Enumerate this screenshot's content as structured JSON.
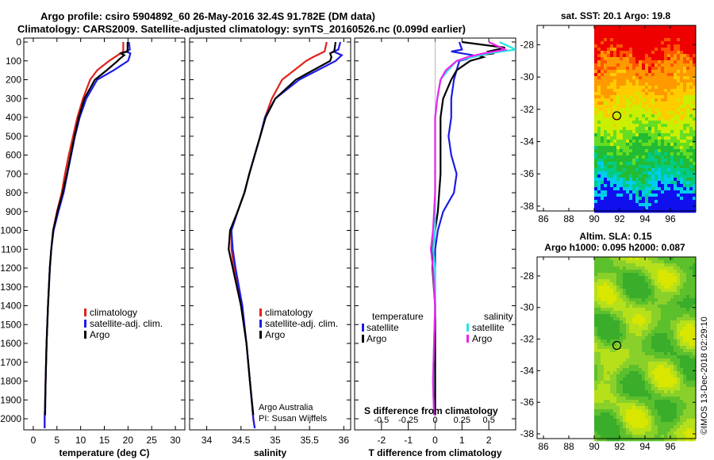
{
  "header": {
    "line1": "Argo profile: csiro 5904892_60 26-May-2016 32.4S 91.782E (DM data)",
    "line2": "Climatology: CARS2009. Satellite-adjusted climatology: synTS_20160526.nc (0.099d earlier)"
  },
  "colors": {
    "climatology": "#e0201e",
    "satellite": "#1c1ce6",
    "argo": "#000000",
    "satellite_s": "#22e5e5",
    "argo_s": "#ee22ee"
  },
  "chart_data": [
    {
      "type": "line",
      "name": "temperature-profile",
      "xlabel": "temperature (deg C)",
      "xlim": [
        -2,
        32
      ],
      "xticks": [
        "0",
        "5",
        "10",
        "15",
        "20",
        "25",
        "30"
      ],
      "ylim": [
        2080,
        0
      ],
      "yticks": [
        "0",
        "100",
        "200",
        "300",
        "400",
        "500",
        "600",
        "700",
        "800",
        "900",
        "1000",
        "1100",
        "1200",
        "1300",
        "1400",
        "1500",
        "1600",
        "1700",
        "1800",
        "1900",
        "2000"
      ],
      "legend": [
        "climatology",
        "satellite-adj. clim.",
        "Argo"
      ],
      "series": [
        {
          "name": "climatology",
          "pressure": [
            0,
            50,
            100,
            150,
            200,
            300,
            400,
            500,
            600,
            700,
            800,
            900,
            1000,
            1100,
            1200,
            1400,
            1600,
            1800,
            2000,
            2050
          ],
          "values": [
            19.0,
            19.0,
            16.0,
            13.5,
            12.0,
            10.5,
            9.3,
            8.4,
            7.5,
            6.7,
            6.0,
            5.0,
            4.2,
            3.8,
            3.5,
            3.1,
            2.8,
            2.6,
            2.4,
            2.4
          ]
        },
        {
          "name": "satellite-adj. clim.",
          "pressure": [
            0,
            40,
            50,
            60,
            80,
            100,
            150,
            200,
            300,
            400,
            500,
            600,
            700,
            800,
            900,
            1000,
            1100,
            1200,
            1400,
            1600,
            1800,
            2000,
            2050
          ],
          "values": [
            20.2,
            20.4,
            19.6,
            20.5,
            20.3,
            20.0,
            17.0,
            13.5,
            11.2,
            9.8,
            8.8,
            8.0,
            7.2,
            6.4,
            5.3,
            4.3,
            3.8,
            3.5,
            3.1,
            2.8,
            2.6,
            2.4,
            2.4
          ]
        },
        {
          "name": "Argo",
          "pressure": [
            0,
            50,
            60,
            70,
            90,
            100,
            150,
            200,
            300,
            400,
            500,
            600,
            700,
            800,
            900,
            1000,
            1100,
            1200,
            1400,
            1600,
            1800,
            1980
          ],
          "values": [
            19.9,
            19.9,
            18.5,
            19.2,
            18.2,
            17.8,
            15.5,
            13.0,
            10.8,
            9.6,
            8.7,
            7.9,
            7.1,
            6.2,
            5.1,
            4.2,
            3.8,
            3.5,
            3.1,
            2.8,
            2.6,
            2.5
          ]
        }
      ]
    },
    {
      "type": "line",
      "name": "salinity-profile",
      "xlabel": "salinity",
      "xlim": [
        33.75,
        36.1
      ],
      "xticks": [
        "34",
        "34.5",
        "35",
        "35.5",
        "36"
      ],
      "ylim": [
        2080,
        0
      ],
      "legend": [
        "climatology",
        "satellite-adj. clim.",
        "Argo"
      ],
      "annotations": [
        "Argo Australia",
        "PI: Susan Wijffels"
      ],
      "series": [
        {
          "name": "climatology",
          "pressure": [
            0,
            50,
            80,
            100,
            200,
            300,
            400,
            500,
            600,
            700,
            800,
            900,
            1000,
            1100,
            1200,
            1400,
            1600,
            1800,
            2000,
            2050
          ],
          "values": [
            35.75,
            35.72,
            35.55,
            35.45,
            35.1,
            34.95,
            34.85,
            34.78,
            34.7,
            34.62,
            34.55,
            34.45,
            34.36,
            34.36,
            34.4,
            34.5,
            34.58,
            34.63,
            34.68,
            34.7
          ]
        },
        {
          "name": "satellite-adj. clim.",
          "pressure": [
            0,
            40,
            50,
            70,
            100,
            200,
            300,
            400,
            500,
            600,
            700,
            800,
            900,
            1000,
            1100,
            1200,
            1400,
            1600,
            1800,
            2000,
            2050
          ],
          "values": [
            35.95,
            35.92,
            35.85,
            35.97,
            35.88,
            35.35,
            35.0,
            34.85,
            34.78,
            34.7,
            34.62,
            34.55,
            34.45,
            34.36,
            34.38,
            34.42,
            34.52,
            34.58,
            34.63,
            34.68,
            34.7
          ]
        },
        {
          "name": "Argo",
          "pressure": [
            0,
            50,
            60,
            80,
            100,
            200,
            300,
            400,
            500,
            600,
            700,
            800,
            900,
            1000,
            1100,
            1200,
            1400,
            1600,
            1800,
            1980
          ],
          "values": [
            35.88,
            35.86,
            35.8,
            35.82,
            35.8,
            35.3,
            35.0,
            34.86,
            34.78,
            34.7,
            34.62,
            34.55,
            34.45,
            34.34,
            34.32,
            34.38,
            34.5,
            34.58,
            34.63,
            34.68
          ]
        }
      ]
    },
    {
      "type": "line",
      "name": "difference-profile",
      "xlabel": "T difference from climatology",
      "xlabel2": "S difference from climatology",
      "xlim": [
        -3,
        3
      ],
      "xticks": [
        "-2",
        "-1",
        "0",
        "1",
        "2"
      ],
      "xticks2": [
        "-0.5",
        "-0.25",
        "0",
        "0.25",
        "0.5"
      ],
      "ylim": [
        2080,
        0
      ],
      "legend_left_title": "temperature",
      "legend_right_title": "salinity",
      "legend": [
        "satellite",
        "Argo",
        "satellite",
        "Argo"
      ],
      "series": [
        {
          "name": "T satellite",
          "pressure": [
            0,
            40,
            50,
            70,
            90,
            100,
            150,
            200,
            300,
            400,
            500,
            600,
            700,
            800,
            900,
            1000,
            1100,
            1200,
            1400,
            1600,
            1800,
            1980
          ],
          "values": [
            0.9,
            1.0,
            0.6,
            1.4,
            1.2,
            0.9,
            0.8,
            0.7,
            0.6,
            0.6,
            0.5,
            0.6,
            0.8,
            0.7,
            0.3,
            0.1,
            0.0,
            0.0,
            0.0,
            0.0,
            0.0,
            0.0
          ]
        },
        {
          "name": "T Argo",
          "pressure": [
            0,
            30,
            50,
            60,
            70,
            80,
            100,
            150,
            200,
            300,
            400,
            500,
            600,
            700,
            800,
            900,
            1000,
            1100,
            1200,
            1400,
            1600,
            1800,
            1980
          ],
          "values": [
            1.0,
            2.6,
            2.0,
            2.2,
            1.6,
            1.8,
            1.3,
            0.8,
            0.6,
            0.3,
            0.2,
            0.2,
            0.2,
            0.2,
            0.15,
            0.1,
            0.0,
            -0.1,
            -0.1,
            0.0,
            0.0,
            0.0,
            0.0
          ]
        },
        {
          "name": "S satellite",
          "pressure": [
            0,
            40,
            60,
            80,
            100,
            150,
            200,
            300,
            400,
            500,
            600,
            800,
            1000,
            1100,
            1200,
            1400,
            1600,
            1800,
            1980
          ],
          "values": [
            0.6,
            0.75,
            0.5,
            0.35,
            0.2,
            0.12,
            0.05,
            0.02,
            0.0,
            0.0,
            0.0,
            0.0,
            0.0,
            -0.02,
            0.0,
            0.0,
            -0.01,
            -0.02,
            -0.01
          ]
        },
        {
          "name": "S Argo",
          "pressure": [
            0,
            40,
            60,
            80,
            100,
            150,
            200,
            300,
            400,
            500,
            600,
            800,
            1000,
            1100,
            1200,
            1400,
            1600,
            1800,
            1980
          ],
          "values": [
            0.5,
            0.65,
            0.45,
            0.3,
            0.2,
            0.1,
            0.05,
            0.02,
            0.0,
            0.0,
            0.0,
            0.0,
            -0.02,
            -0.04,
            -0.02,
            0.0,
            -0.01,
            -0.02,
            -0.01
          ]
        }
      ]
    },
    {
      "type": "heatmap",
      "name": "sst-map",
      "title": "sat. SST: 20.1 Argo: 19.8",
      "xlim": [
        85.5,
        98
      ],
      "ylim": [
        -38.3,
        -26.8
      ],
      "xticks": [
        "86",
        "88",
        "90",
        "92",
        "94",
        "96"
      ],
      "yticks": [
        "-28",
        "-30",
        "-32",
        "-34",
        "-36",
        "-38"
      ],
      "marker": [
        91.782,
        -32.4
      ]
    },
    {
      "type": "heatmap",
      "name": "sla-map",
      "title": "Altim. SLA: 0.15",
      "subtitle": "Argo h1000: 0.095 h2000: 0.087",
      "xlim": [
        85.5,
        98
      ],
      "ylim": [
        -38.3,
        -26.8
      ],
      "xticks": [
        "86",
        "88",
        "90",
        "92",
        "94",
        "96"
      ],
      "yticks": [
        "-28",
        "-30",
        "-32",
        "-34",
        "-36",
        "-38"
      ],
      "marker": [
        91.782,
        -32.4
      ]
    }
  ],
  "credit": "©IMOS 13-Dec-2018 02:29:10"
}
